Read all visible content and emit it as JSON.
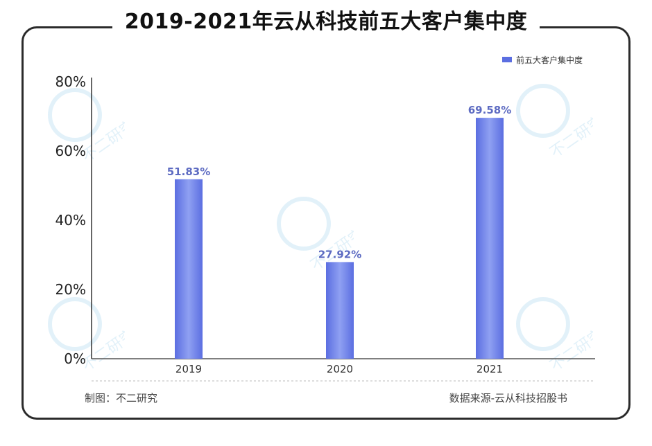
{
  "title": "2019-2021年云从科技前五大客户集中度",
  "footer": {
    "maker": "制图：不二研究",
    "source": "数据来源-云从科技招股书"
  },
  "watermark": "不二研究",
  "colors": {
    "bar": "#5b6ee1",
    "bar_light": "#8fa0f2",
    "label": "#5d6bc2"
  },
  "chart_data": {
    "type": "bar",
    "title": "2019-2021年云从科技前五大客户集中度",
    "categories": [
      "2019",
      "2020",
      "2021"
    ],
    "series": [
      {
        "name": "前五大客户集中度",
        "values": [
          51.83,
          27.92,
          69.58
        ]
      }
    ],
    "data_labels": [
      "51.83%",
      "27.92%",
      "69.58%"
    ],
    "y_ticks": [
      "0%",
      "20%",
      "40%",
      "60%",
      "80%"
    ],
    "ylim": [
      0,
      80
    ],
    "grid": false,
    "legend": "top-right"
  }
}
